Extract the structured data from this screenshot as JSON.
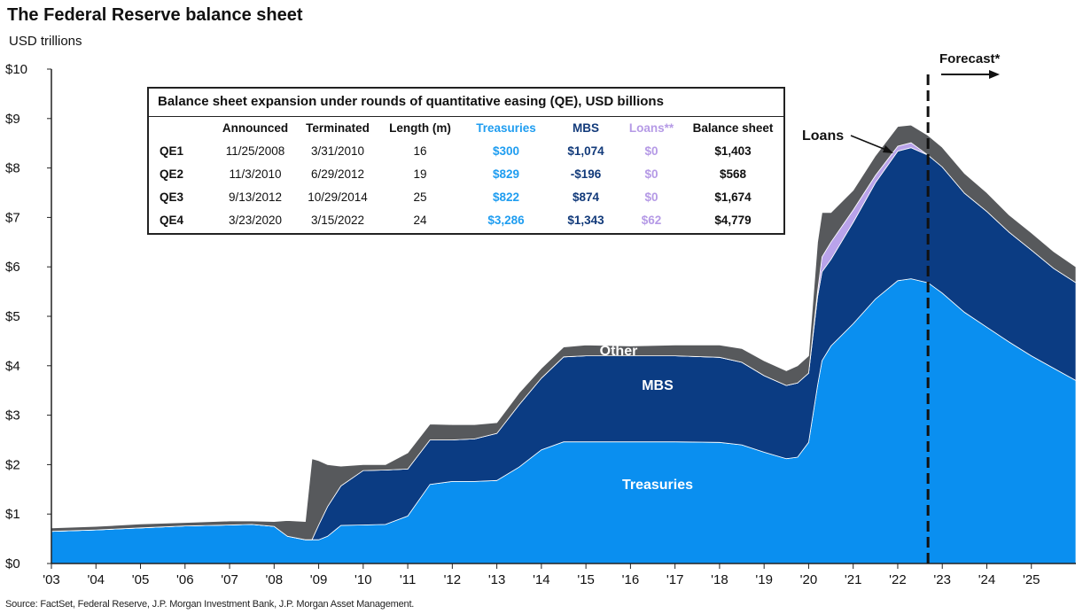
{
  "title": "The Federal Reserve balance sheet",
  "unit_label": "USD trillions",
  "source": "Source: FactSet, Federal Reserve, J.P. Morgan Investment Bank, J.P. Morgan Asset Management.",
  "forecast_label": "Forecast*",
  "colors": {
    "treasuries": "#0a8ff0",
    "mbs": "#0b3c83",
    "loans": "#b9a3ea",
    "other": "#57595c",
    "background": "#ffffff"
  },
  "qe_table": {
    "title": "Balance sheet expansion under rounds of quantitative easing (QE), USD billions",
    "headers": [
      "",
      "Announced",
      "Terminated",
      "Length (m)",
      "Treasuries",
      "MBS",
      "Loans**",
      "Balance sheet"
    ],
    "rows": [
      [
        "QE1",
        "11/25/2008",
        "3/31/2010",
        "16",
        "$300",
        "$1,074",
        "$0",
        "$1,403"
      ],
      [
        "QE2",
        "11/3/2010",
        "6/29/2012",
        "19",
        "$829",
        "-$196",
        "$0",
        "$568"
      ],
      [
        "QE3",
        "9/13/2012",
        "10/29/2014",
        "25",
        "$822",
        "$874",
        "$0",
        "$1,674"
      ],
      [
        "QE4",
        "3/23/2020",
        "3/15/2022",
        "24",
        "$3,286",
        "$1,343",
        "$62",
        "$4,779"
      ]
    ]
  },
  "chart_data": {
    "type": "area",
    "stacked": true,
    "title": "The Federal Reserve balance sheet",
    "ylabel": "USD trillions",
    "xlabel": "",
    "ylim": [
      0,
      10
    ],
    "xlim": [
      2003.0,
      2026.0
    ],
    "yticks": [
      0,
      1,
      2,
      3,
      4,
      5,
      6,
      7,
      8,
      9,
      10
    ],
    "ytick_labels": [
      "$0",
      "$1",
      "$2",
      "$3",
      "$4",
      "$5",
      "$6",
      "$7",
      "$8",
      "$9",
      "$10"
    ],
    "xtick_labels": [
      "'03",
      "'04",
      "'05",
      "'06",
      "'07",
      "'08",
      "'09",
      "'10",
      "'11",
      "'12",
      "'13",
      "'14",
      "'15",
      "'16",
      "'17",
      "'18",
      "'19",
      "'20",
      "'21",
      "'22",
      "'23",
      "'24",
      "'25"
    ],
    "forecast_start": 2022.68,
    "x": [
      2003.0,
      2004.0,
      2005.0,
      2006.0,
      2007.0,
      2007.5,
      2008.0,
      2008.3,
      2008.7,
      2008.85,
      2009.0,
      2009.2,
      2009.5,
      2010.0,
      2010.5,
      2011.0,
      2011.5,
      2012.0,
      2012.5,
      2013.0,
      2013.5,
      2014.0,
      2014.5,
      2015.0,
      2016.0,
      2017.0,
      2018.0,
      2018.5,
      2019.0,
      2019.5,
      2019.75,
      2020.0,
      2020.2,
      2020.3,
      2020.5,
      2021.0,
      2021.5,
      2022.0,
      2022.3,
      2022.68,
      2023.0,
      2023.5,
      2024.0,
      2024.5,
      2025.0,
      2025.5,
      2026.0
    ],
    "series": [
      {
        "name": "Treasuries",
        "values": [
          0.65,
          0.68,
          0.72,
          0.76,
          0.78,
          0.79,
          0.75,
          0.55,
          0.48,
          0.48,
          0.48,
          0.55,
          0.77,
          0.78,
          0.79,
          0.96,
          1.6,
          1.66,
          1.66,
          1.68,
          1.95,
          2.3,
          2.46,
          2.46,
          2.46,
          2.46,
          2.45,
          2.4,
          2.25,
          2.12,
          2.15,
          2.45,
          3.6,
          4.1,
          4.4,
          4.85,
          5.35,
          5.72,
          5.76,
          5.68,
          5.47,
          5.08,
          4.78,
          4.48,
          4.2,
          3.95,
          3.7
        ]
      },
      {
        "name": "MBS",
        "values": [
          0.0,
          0.0,
          0.0,
          0.0,
          0.0,
          0.0,
          0.0,
          0.0,
          0.0,
          0.0,
          0.3,
          0.6,
          0.8,
          1.1,
          1.1,
          0.95,
          0.9,
          0.84,
          0.86,
          0.95,
          1.26,
          1.45,
          1.72,
          1.74,
          1.74,
          1.74,
          1.72,
          1.67,
          1.55,
          1.48,
          1.5,
          1.4,
          1.8,
          1.8,
          1.75,
          2.05,
          2.35,
          2.62,
          2.65,
          2.58,
          2.55,
          2.41,
          2.34,
          2.22,
          2.14,
          2.02,
          1.98
        ]
      },
      {
        "name": "Loans",
        "values": [
          0.0,
          0.0,
          0.0,
          0.0,
          0.0,
          0.0,
          0.0,
          0.0,
          0.0,
          0.0,
          0.0,
          0.0,
          0.0,
          0.0,
          0.0,
          0.0,
          0.0,
          0.0,
          0.0,
          0.0,
          0.0,
          0.0,
          0.0,
          0.0,
          0.0,
          0.0,
          0.0,
          0.0,
          0.0,
          0.0,
          0.0,
          0.0,
          0.1,
          0.3,
          0.35,
          0.25,
          0.15,
          0.1,
          0.1,
          0.0,
          0.0,
          0.0,
          0.0,
          0.0,
          0.0,
          0.0,
          0.0
        ]
      },
      {
        "name": "Other",
        "values": [
          0.07,
          0.07,
          0.08,
          0.07,
          0.08,
          0.07,
          0.1,
          0.32,
          0.37,
          1.64,
          1.3,
          0.85,
          0.4,
          0.12,
          0.11,
          0.33,
          0.32,
          0.31,
          0.29,
          0.22,
          0.24,
          0.2,
          0.2,
          0.22,
          0.2,
          0.22,
          0.25,
          0.28,
          0.3,
          0.3,
          0.35,
          0.35,
          1.0,
          0.9,
          0.6,
          0.4,
          0.4,
          0.4,
          0.36,
          0.4,
          0.4,
          0.4,
          0.38,
          0.35,
          0.35,
          0.34,
          0.32
        ]
      }
    ],
    "annotations": [
      "Treasuries",
      "MBS",
      "Other",
      "Loans"
    ]
  }
}
